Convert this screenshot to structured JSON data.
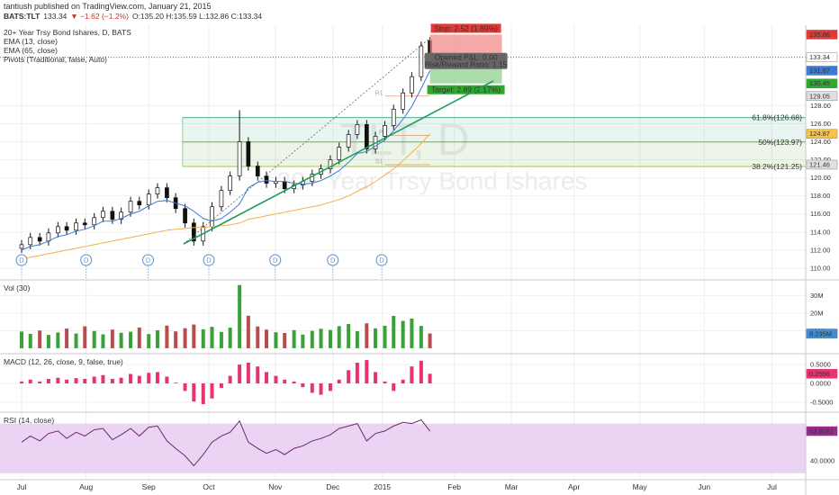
{
  "header": {
    "publisher": "tantiush published on TradingView.com, January 21, 2015",
    "symbol": "BATS:TLT",
    "price": "133.34",
    "change": "▼ −1.62 (−1.2%)",
    "ohlc": "O:135.20 H:135.59 L:132.86 C:133.34"
  },
  "chart_data": [
    {
      "type": "candlestick",
      "title": "20+ Year Trsy Bond Ishares, D, BATS",
      "watermark": "TLT, D",
      "watermark_name": "20+ Year Trsy Bond Ishares",
      "pivots_label": "Pivots (Traditional, false, Auto)",
      "x": [
        0,
        0.14,
        0.29,
        0.43,
        0.58,
        0.72,
        0.87,
        1.01,
        1.16,
        1.3,
        1.45,
        1.59,
        1.74,
        1.88,
        2.03,
        2.17,
        2.32,
        2.46,
        2.61,
        2.75,
        2.9,
        3.04,
        3.19,
        3.33,
        3.48,
        3.62,
        3.77,
        3.91,
        4.06,
        4.2,
        4.35,
        4.49,
        4.64,
        4.78,
        4.93,
        5.07,
        5.22,
        5.36,
        5.51,
        5.65,
        5.8,
        5.94,
        6.09,
        6.23,
        6.38,
        6.52
      ],
      "open": [
        112.2,
        112.6,
        113.4,
        113.0,
        113.9,
        114.6,
        114.2,
        115.0,
        114.8,
        115.6,
        116.3,
        115.4,
        116.2,
        117.4,
        117.0,
        118.2,
        118.9,
        117.8,
        116.6,
        115.0,
        113.0,
        114.6,
        116.8,
        118.6,
        120.2,
        124.0,
        121.3,
        120.2,
        119.4,
        119.6,
        118.8,
        119.2,
        119.6,
        120.4,
        121.0,
        122.0,
        123.4,
        124.8,
        125.9,
        123.2,
        124.6,
        125.8,
        127.6,
        129.4,
        131.2,
        135.2
      ],
      "high": [
        113.1,
        113.9,
        113.9,
        114.4,
        115.1,
        115.1,
        115.5,
        115.5,
        116.1,
        116.8,
        116.8,
        116.7,
        117.9,
        117.9,
        118.7,
        119.4,
        119.4,
        118.3,
        117.1,
        115.5,
        115.1,
        117.3,
        119.1,
        120.7,
        127.5,
        124.5,
        121.8,
        120.7,
        120.1,
        120.1,
        119.7,
        120.1,
        120.9,
        121.5,
        122.5,
        123.9,
        125.3,
        126.4,
        126.4,
        125.1,
        126.3,
        128.1,
        129.9,
        131.7,
        135.1,
        135.59
      ],
      "low": [
        111.7,
        112.1,
        112.5,
        112.5,
        113.4,
        113.7,
        113.7,
        114.3,
        114.3,
        115.1,
        114.9,
        114.9,
        115.7,
        116.5,
        116.5,
        117.7,
        117.3,
        116.1,
        114.5,
        112.5,
        112.5,
        114.1,
        116.3,
        118.1,
        119.7,
        120.8,
        119.7,
        118.9,
        118.9,
        118.3,
        118.3,
        118.7,
        119.1,
        119.9,
        120.5,
        121.5,
        122.9,
        124.3,
        122.7,
        122.7,
        124.1,
        125.3,
        127.1,
        128.9,
        130.7,
        132.86
      ],
      "close": [
        112.6,
        113.4,
        113.0,
        113.9,
        114.6,
        114.2,
        115.0,
        114.8,
        115.6,
        116.3,
        115.4,
        116.2,
        117.4,
        117.0,
        118.2,
        118.9,
        117.8,
        116.6,
        115.0,
        113.0,
        114.6,
        116.8,
        118.6,
        120.2,
        124.0,
        121.3,
        120.2,
        119.4,
        119.6,
        118.8,
        119.2,
        119.6,
        120.4,
        121.0,
        122.0,
        123.4,
        124.8,
        125.9,
        123.2,
        124.6,
        125.8,
        127.6,
        129.4,
        131.2,
        134.6,
        133.34
      ],
      "candle_colors": {
        "up": "#ffffff",
        "down": "#111111",
        "edge": "#111111"
      },
      "series": [
        {
          "name": "EMA (13, close)",
          "color": "#3a7bd5",
          "values": [
            112.0,
            112.4,
            112.6,
            113.0,
            113.5,
            113.7,
            114.1,
            114.3,
            114.7,
            115.2,
            115.2,
            115.5,
            116.0,
            116.3,
            116.9,
            117.4,
            117.5,
            117.2,
            116.9,
            116.3,
            115.5,
            115.2,
            115.5,
            116.2,
            117.1,
            118.9,
            119.5,
            119.7,
            119.6,
            119.6,
            119.4,
            119.3,
            119.4,
            119.7,
            120.2,
            120.8,
            121.7,
            122.7,
            122.9,
            123.5,
            124.2,
            125.2,
            126.5,
            127.9,
            129.9,
            131.87
          ]
        },
        {
          "name": "EMA (65, close)",
          "color": "#f0b14a",
          "values": [
            111.0,
            111.2,
            111.4,
            111.6,
            111.8,
            112.0,
            112.2,
            112.4,
            112.6,
            112.8,
            113.0,
            113.2,
            113.4,
            113.6,
            113.8,
            114.0,
            114.2,
            114.3,
            114.4,
            114.5,
            114.5,
            114.6,
            114.7,
            114.8,
            115.0,
            115.4,
            115.6,
            115.8,
            116.0,
            116.2,
            116.4,
            116.6,
            116.8,
            117.0,
            117.3,
            117.6,
            118.0,
            118.5,
            119.0,
            119.6,
            120.3,
            121.0,
            121.9,
            122.8,
            123.8,
            124.87
          ]
        }
      ],
      "last_price": 133.34,
      "ylim": [
        108.8,
        136.9
      ],
      "yticks": [
        {
          "value": 110,
          "label": "110.00"
        },
        {
          "value": 112,
          "label": "112.00"
        },
        {
          "value": 114,
          "label": "114.00"
        },
        {
          "value": 116,
          "label": "116.00"
        },
        {
          "value": 118,
          "label": "118.00"
        },
        {
          "value": 120,
          "label": "120.00"
        },
        {
          "value": 122,
          "label": "122.00"
        },
        {
          "value": 124,
          "label": "124.00"
        },
        {
          "value": 126,
          "label": "126.00"
        },
        {
          "value": 128,
          "label": "128.00"
        }
      ],
      "flags": [
        {
          "value": 135.86,
          "label": "135.86",
          "color": "#e53935"
        },
        {
          "value": 133.34,
          "label": "133.34",
          "color": "#ffffff"
        },
        {
          "value": 131.87,
          "label": "131.87",
          "color": "#3a7bd5"
        },
        {
          "value": 130.45,
          "label": "130.45",
          "color": "#2ea82e"
        },
        {
          "value": 129.05,
          "label": "129.05",
          "color": "#e0e0e0"
        },
        {
          "value": 124.87,
          "label": "124.87",
          "color": "#f6c344"
        },
        {
          "value": 121.46,
          "label": "121.46",
          "color": "#e0e0e0"
        }
      ],
      "fib": {
        "x_start": 2.57,
        "levels": [
          {
            "label": "61.8%(126.68)",
            "value": 126.68,
            "color": "#4caf8f"
          },
          {
            "label": "50%(123.97)",
            "value": 123.97,
            "color": "#6ab04c"
          },
          {
            "label": "38.2%(121.25)",
            "value": 121.25,
            "color": "#a5c83a"
          }
        ]
      },
      "pivots": {
        "x": [
          5.8,
          6.52
        ],
        "levels": [
          {
            "label": "R1",
            "value": 129.05
          },
          {
            "label": "P",
            "value": 124.7
          },
          {
            "label": "S1",
            "value": 121.46
          }
        ]
      },
      "position": {
        "x": [
          6.52,
          7.67
        ],
        "entry": 133.34,
        "stop": 135.86,
        "target": 130.45,
        "stop_label": "Stop: 2.52 (1.89%)",
        "pnl_label": "Opened P&L: 0.00",
        "ratio_label": "Risk/Reward Ratio: 1.15",
        "target_label": "Target: 2.89 (2.17%)"
      },
      "dividends": {
        "label": "D",
        "x": [
          0,
          1.03,
          2.02,
          2.99,
          4.05,
          4.97,
          5.75
        ]
      }
    },
    {
      "type": "bar",
      "title": "Vol (30)",
      "x": [
        0,
        0.14,
        0.29,
        0.43,
        0.58,
        0.72,
        0.87,
        1.01,
        1.16,
        1.3,
        1.45,
        1.59,
        1.74,
        1.88,
        2.03,
        2.17,
        2.32,
        2.46,
        2.61,
        2.75,
        2.9,
        3.04,
        3.19,
        3.33,
        3.48,
        3.62,
        3.77,
        3.91,
        4.06,
        4.2,
        4.35,
        4.49,
        4.64,
        4.78,
        4.93,
        5.07,
        5.22,
        5.36,
        5.51,
        5.65,
        5.8,
        5.94,
        6.09,
        6.23,
        6.38,
        6.52
      ],
      "values": [
        9500000,
        8200000,
        10100000,
        7600000,
        9000000,
        11200000,
        8400000,
        12500000,
        9800000,
        7900000,
        10600000,
        8800000,
        9400000,
        11800000,
        8100000,
        10200000,
        12900000,
        9600000,
        11400000,
        13500000,
        10800000,
        12200000,
        9300000,
        11700000,
        36000000,
        18500000,
        12400000,
        10600000,
        9100000,
        8700000,
        10300000,
        7800000,
        9900000,
        11100000,
        10400000,
        12600000,
        13800000,
        9700000,
        14200000,
        11300000,
        12800000,
        18400000,
        15600000,
        16900000,
        12700000,
        8391000
      ],
      "colors": {
        "up": "#3aa13a",
        "down": "#b84d4d"
      },
      "ylim": [
        -2600000,
        37900000
      ],
      "yticks": [
        {
          "value": 10000000,
          "label": "10M"
        },
        {
          "value": 20000000,
          "label": "20M"
        },
        {
          "value": 30000000,
          "label": "30M"
        }
      ],
      "flags": [
        {
          "value": 8391000,
          "label": "8.391M",
          "color": "#c0392b"
        },
        {
          "value": 8235000,
          "label": "8.235M",
          "color": "#3e8ed6"
        }
      ]
    },
    {
      "type": "bar",
      "title": "MACD (12, 26, close, 9, false, true)",
      "x": [
        0,
        0.14,
        0.29,
        0.43,
        0.58,
        0.72,
        0.87,
        1.01,
        1.16,
        1.3,
        1.45,
        1.59,
        1.74,
        1.88,
        2.03,
        2.17,
        2.32,
        2.46,
        2.61,
        2.75,
        2.9,
        3.04,
        3.19,
        3.33,
        3.48,
        3.62,
        3.77,
        3.91,
        4.06,
        4.2,
        4.35,
        4.49,
        4.64,
        4.78,
        4.93,
        5.07,
        5.22,
        5.36,
        5.51,
        5.65,
        5.8,
        5.94,
        6.09,
        6.23,
        6.38,
        6.52
      ],
      "values": [
        0.05,
        0.1,
        0.05,
        0.12,
        0.15,
        0.1,
        0.14,
        0.12,
        0.18,
        0.22,
        0.12,
        0.15,
        0.25,
        0.2,
        0.28,
        0.3,
        0.18,
        0.02,
        -0.2,
        -0.48,
        -0.55,
        -0.4,
        -0.12,
        0.2,
        0.5,
        0.55,
        0.45,
        0.3,
        0.2,
        0.1,
        0.05,
        -0.1,
        -0.25,
        -0.3,
        -0.2,
        0.1,
        0.35,
        0.55,
        0.62,
        0.3,
        0.05,
        -0.2,
        0.1,
        0.45,
        0.6,
        0.2556
      ],
      "color": "#e8336c",
      "ylim": [
        -0.74,
        0.74
      ],
      "yticks": [
        {
          "value": -0.5,
          "label": "-0.5000"
        },
        {
          "value": 0,
          "label": "0.0000"
        },
        {
          "value": 0.5,
          "label": "0.5000"
        }
      ],
      "flags": [
        {
          "value": 0.2556,
          "label": "0.2556",
          "color": "#e8336c"
        }
      ]
    },
    {
      "type": "line",
      "title": "RSI (14, close)",
      "x": [
        0,
        0.14,
        0.29,
        0.43,
        0.58,
        0.72,
        0.87,
        1.01,
        1.16,
        1.3,
        1.45,
        1.59,
        1.74,
        1.88,
        2.03,
        2.17,
        2.32,
        2.46,
        2.61,
        2.75,
        2.9,
        3.04,
        3.19,
        3.33,
        3.48,
        3.62,
        3.77,
        3.91,
        4.06,
        4.2,
        4.35,
        4.49,
        4.64,
        4.78,
        4.93,
        5.07,
        5.22,
        5.36,
        5.51,
        5.65,
        5.8,
        5.94,
        6.09,
        6.23,
        6.38,
        6.52
      ],
      "values": [
        55,
        60,
        56,
        62,
        64,
        58,
        63,
        60,
        65,
        66,
        57,
        61,
        66,
        60,
        67,
        68,
        56,
        50,
        44,
        36,
        45,
        55,
        60,
        63,
        72,
        55,
        50,
        46,
        49,
        45,
        50,
        52,
        56,
        58,
        61,
        66,
        68,
        70,
        56,
        62,
        64,
        68,
        71,
        70,
        73,
        63.9061
      ],
      "color": "#6b2a6b",
      "band": [
        30,
        70
      ],
      "band_color": "#ead3f3",
      "ylim": [
        25.5,
        77.7
      ],
      "yticks": [
        {
          "value": 40,
          "label": "40.0000"
        }
      ],
      "flags": [
        {
          "value": 63.9061,
          "label": "63.9061",
          "color": "#9b2a8f"
        }
      ],
      "xlim": [
        -0.345,
        12.52
      ],
      "xticks": [
        {
          "value": 0,
          "label": "Jul"
        },
        {
          "value": 1.03,
          "label": "Aug"
        },
        {
          "value": 2.03,
          "label": "Sep"
        },
        {
          "value": 2.99,
          "label": "Oct"
        },
        {
          "value": 4.05,
          "label": "Nov"
        },
        {
          "value": 4.97,
          "label": "Dec"
        },
        {
          "value": 5.76,
          "label": "2015"
        },
        {
          "value": 6.91,
          "label": "Feb"
        },
        {
          "value": 7.82,
          "label": "Mar"
        },
        {
          "value": 8.82,
          "label": "Apr"
        },
        {
          "value": 9.87,
          "label": "May"
        },
        {
          "value": 10.9,
          "label": "Jun"
        },
        {
          "value": 11.98,
          "label": "Jul"
        }
      ]
    }
  ]
}
